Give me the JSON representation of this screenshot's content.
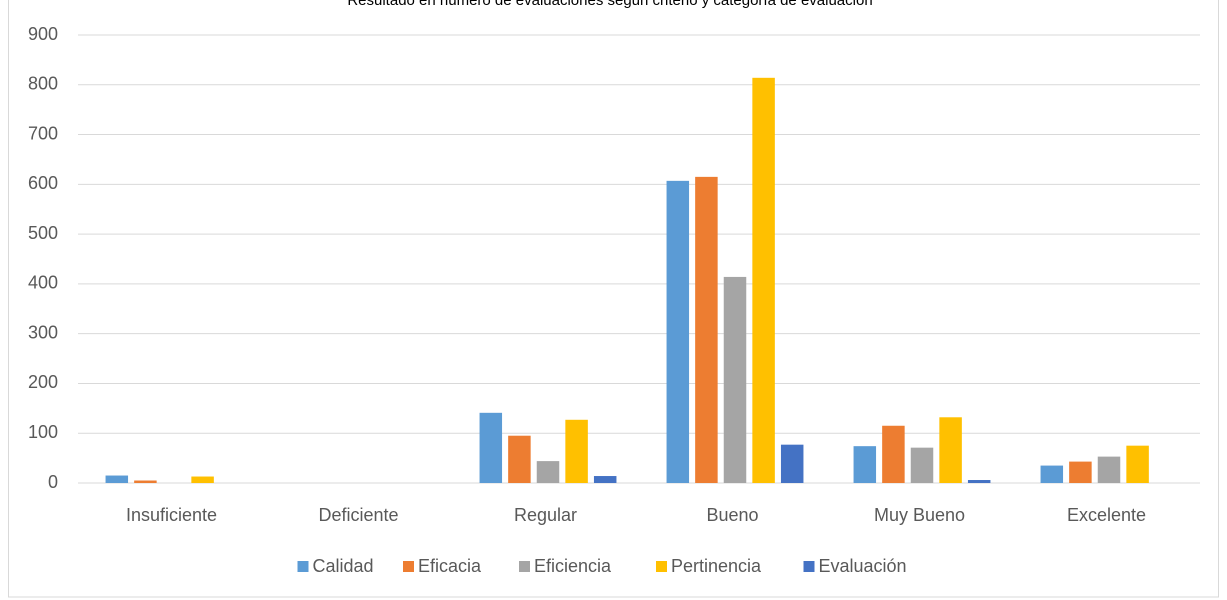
{
  "chart_data": {
    "type": "bar",
    "title": "Resultado en número de evaluaciones según criterio y categoría de evaluación",
    "categories": [
      "Insuficiente",
      "Deficiente",
      "Regular",
      "Bueno",
      "Muy Bueno",
      "Excelente"
    ],
    "series": [
      {
        "name": "Calidad",
        "color": "#5b9bd5",
        "values": [
          15,
          0,
          141,
          607,
          74,
          35
        ]
      },
      {
        "name": "Eficacia",
        "color": "#ed7d31",
        "values": [
          5,
          0,
          95,
          615,
          115,
          43
        ]
      },
      {
        "name": "Eficiencia",
        "color": "#a5a5a5",
        "values": [
          0,
          0,
          44,
          414,
          71,
          53
        ]
      },
      {
        "name": "Pertinencia",
        "color": "#ffc000",
        "values": [
          13,
          0,
          127,
          814,
          132,
          75
        ]
      },
      {
        "name": "Evaluación",
        "color": "#4472c4",
        "values": [
          0,
          0,
          14,
          77,
          6,
          0
        ]
      }
    ],
    "ylim": [
      0,
      900
    ],
    "yticks": [
      0,
      100,
      200,
      300,
      400,
      500,
      600,
      700,
      800,
      900
    ],
    "grid": true,
    "legend": "bottom"
  }
}
